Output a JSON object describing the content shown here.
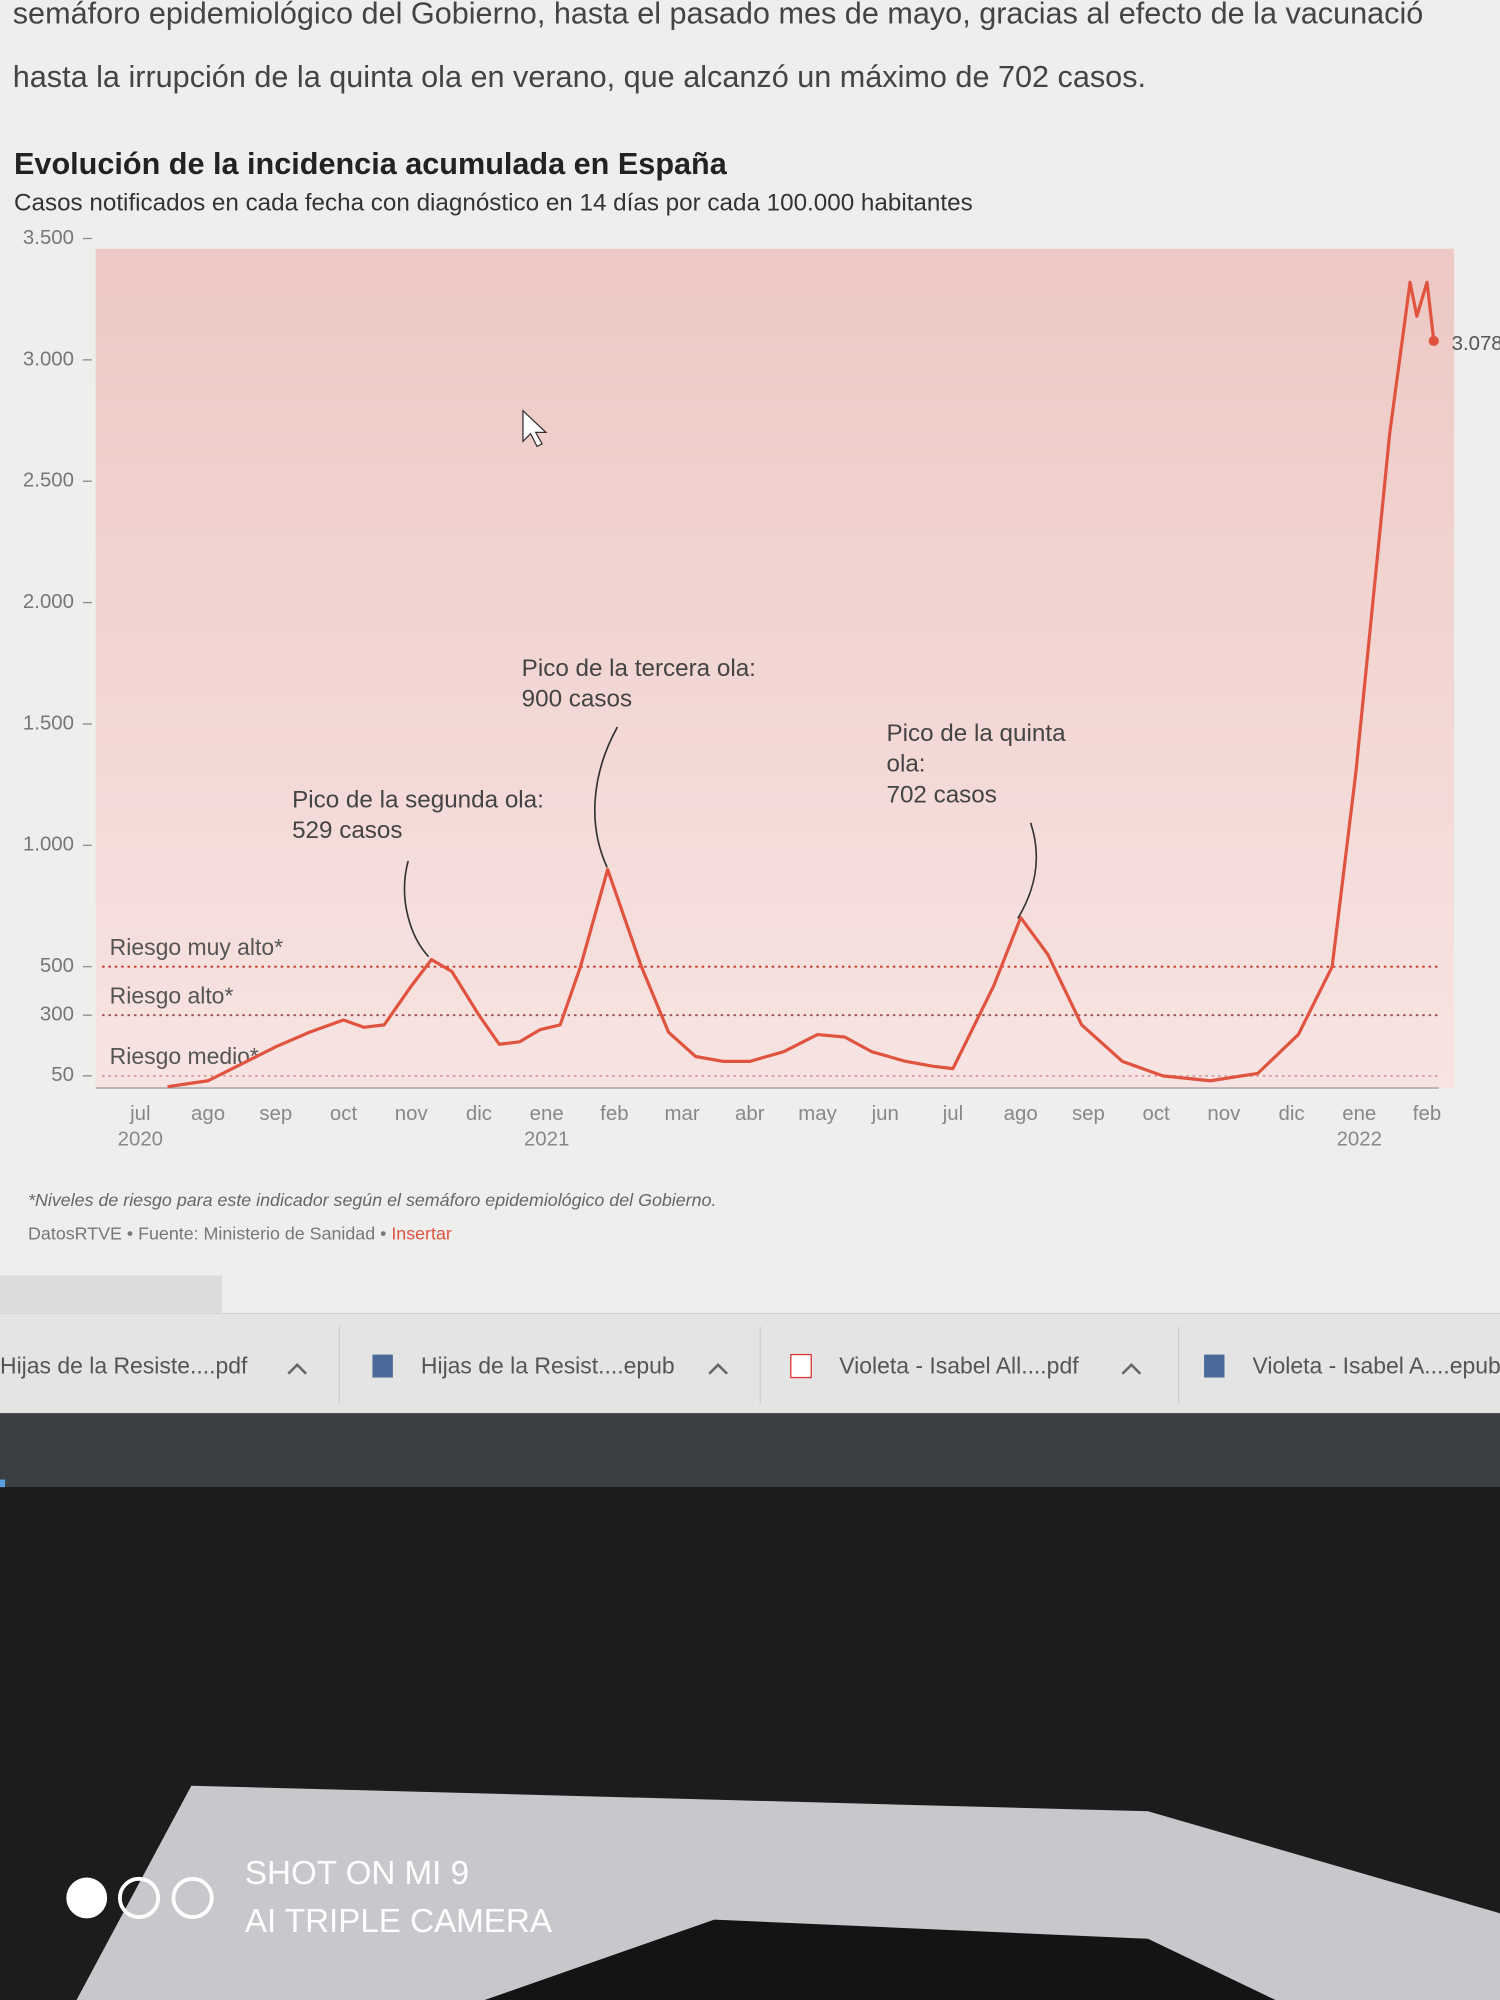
{
  "article_text": [
    "semáforo epidemiológico del Gobierno, hasta el pasado mes de mayo, gracias al efecto de la vacunació",
    "hasta la irrupción de la quinta ola en verano, que alcanzó un máximo de 702 casos."
  ],
  "chart_data": {
    "type": "line",
    "title": "Evolución de la incidencia acumulada en España",
    "subtitle": "Casos notificados en cada fecha con diagnóstico en 14 días por cada 100.000 habitantes",
    "x": [
      0.4,
      1.0,
      1.5,
      2.0,
      2.5,
      3.0,
      3.3,
      3.6,
      4.0,
      4.3,
      4.6,
      5.0,
      5.3,
      5.6,
      5.9,
      6.2,
      6.5,
      6.9,
      7.4,
      7.8,
      8.2,
      8.6,
      9.0,
      9.5,
      10.0,
      10.4,
      10.8,
      11.3,
      11.7,
      12.0,
      12.6,
      13.0,
      13.4,
      13.9,
      14.5,
      15.1,
      15.8,
      16.5,
      17.1,
      17.6,
      17.95,
      18.45,
      18.75,
      18.85,
      19.0,
      19.1
    ],
    "values": [
      5,
      30,
      100,
      170,
      230,
      280,
      250,
      260,
      420,
      529,
      480,
      300,
      180,
      190,
      240,
      260,
      500,
      900,
      500,
      230,
      130,
      110,
      110,
      150,
      220,
      210,
      150,
      110,
      90,
      80,
      420,
      702,
      550,
      260,
      110,
      50,
      30,
      60,
      220,
      500,
      1300,
      2700,
      3320,
      3180,
      3320,
      3078
    ],
    "color": "#e0533f",
    "end_label": "3.078",
    "xlim": [
      -0.66,
      19.4
    ],
    "xticks": [
      {
        "value": 0,
        "label": "jul"
      },
      {
        "value": 1,
        "label": "ago"
      },
      {
        "value": 2,
        "label": "sep"
      },
      {
        "value": 3,
        "label": "oct"
      },
      {
        "value": 4,
        "label": "nov"
      },
      {
        "value": 5,
        "label": "dic"
      },
      {
        "value": 6,
        "label": "ene"
      },
      {
        "value": 7,
        "label": "feb"
      },
      {
        "value": 8,
        "label": "mar"
      },
      {
        "value": 9,
        "label": "abr"
      },
      {
        "value": 10,
        "label": "may"
      },
      {
        "value": 11,
        "label": "jun"
      },
      {
        "value": 12,
        "label": "jul"
      },
      {
        "value": 13,
        "label": "ago"
      },
      {
        "value": 14,
        "label": "sep"
      },
      {
        "value": 15,
        "label": "oct"
      },
      {
        "value": 16,
        "label": "nov"
      },
      {
        "value": 17,
        "label": "dic"
      },
      {
        "value": 18,
        "label": "ene"
      },
      {
        "value": 19,
        "label": "feb"
      }
    ],
    "year_ticks": [
      {
        "value": 0,
        "label": "2020"
      },
      {
        "value": 6,
        "label": "2021"
      },
      {
        "value": 18,
        "label": "2022"
      }
    ],
    "ylim": [
      0,
      3500
    ],
    "yticks": [
      50,
      {
        "value": 300,
        "label": "300"
      },
      500,
      {
        "value": 1000,
        "label": "1.000"
      },
      {
        "value": 1500,
        "label": "1.500"
      },
      {
        "value": 2000,
        "label": "2.000"
      },
      {
        "value": 2500,
        "label": "2.500"
      },
      {
        "value": 3000,
        "label": "3.000"
      },
      {
        "value": 3500,
        "label": "3.500"
      }
    ],
    "thresholds": [
      {
        "label": "Riesgo muy alto*",
        "value": 500
      },
      {
        "label": "Riesgo alto*",
        "value": 300
      },
      {
        "label": "Riesgo medio*",
        "value": 50
      }
    ],
    "annotations": [
      {
        "lines": [
          "Pico de la segunda ola:",
          "529 casos"
        ]
      },
      {
        "lines": [
          "Pico de la tercera ola:",
          "900 casos"
        ]
      },
      {
        "lines": [
          "Pico de la quinta",
          "ola:",
          "702 casos"
        ]
      }
    ],
    "footnote": "*Niveles de riesgo para este indicador según el semáforo epidemiológico del Gobierno.",
    "source": "DatosRTVE • Fuente: Ministerio de Sanidad •",
    "source_link": "Insertar"
  },
  "downloads": [
    "Hijas de la Resiste....pdf",
    "Hijas de la Resist....epub",
    "Violeta - Isabel All....pdf",
    "Violeta - Isabel A....epub"
  ],
  "watermark": [
    "SHOT ON MI 9",
    "AI TRIPLE CAMERA"
  ]
}
